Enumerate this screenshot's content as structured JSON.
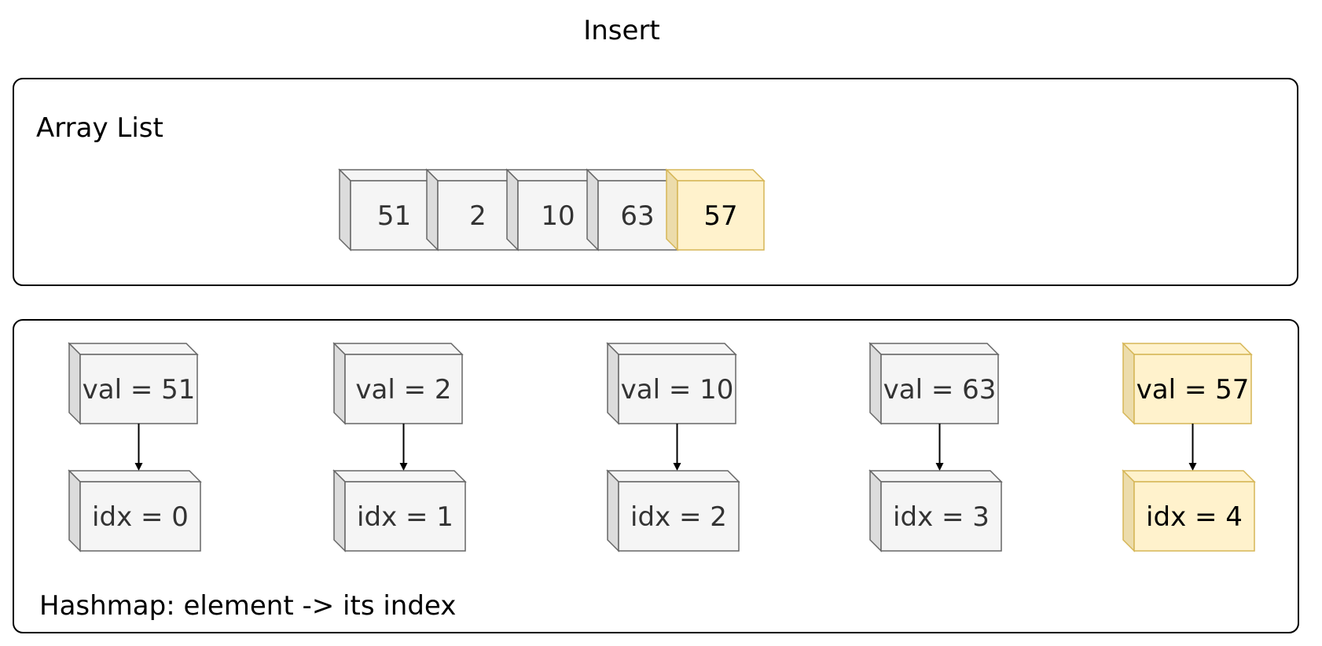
{
  "title": "Insert",
  "array_panel": {
    "label": "Array List",
    "cells": [
      {
        "value": "51",
        "highlight": false
      },
      {
        "value": "2",
        "highlight": false
      },
      {
        "value": "10",
        "highlight": false
      },
      {
        "value": "63",
        "highlight": false
      },
      {
        "value": "57",
        "highlight": true
      }
    ]
  },
  "hashmap_panel": {
    "label": "Hashmap: element -> its index",
    "entries": [
      {
        "val": "val = 51",
        "idx": "idx = 0",
        "highlight": false
      },
      {
        "val": "val = 2",
        "idx": "idx = 1",
        "highlight": false
      },
      {
        "val": "val = 10",
        "idx": "idx = 2",
        "highlight": false
      },
      {
        "val": "val = 63",
        "idx": "idx = 3",
        "highlight": false
      },
      {
        "val": "val = 57",
        "idx": "idx = 4",
        "highlight": true
      }
    ]
  },
  "colors": {
    "normal_fill": "#f5f5f5",
    "normal_side": "#dcdcdc",
    "normal_stroke": "#666666",
    "highlight_fill": "#fff2cc",
    "highlight_side": "#ecdcab",
    "highlight_stroke": "#d6b656",
    "panel_stroke": "#000000",
    "arrow": "#000000"
  }
}
